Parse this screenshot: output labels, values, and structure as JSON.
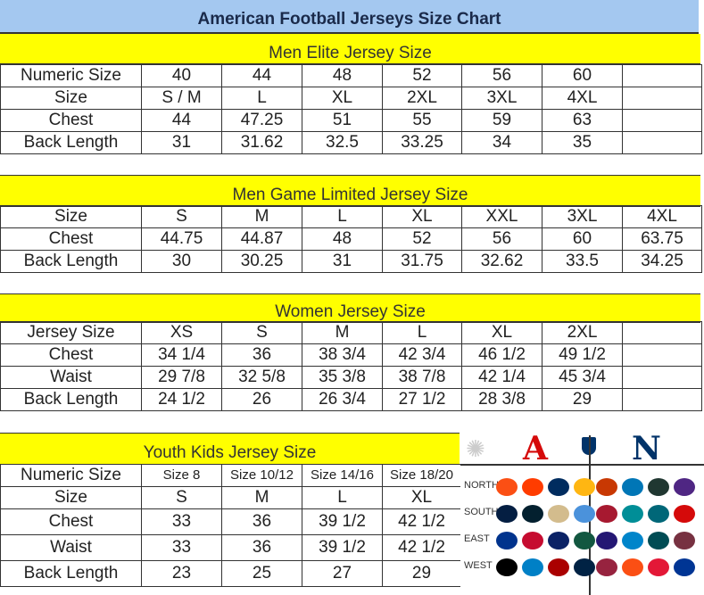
{
  "title": "American Football Jerseys Size Chart",
  "colors": {
    "title_bg": "#a4c8f0",
    "band": "#ffff00"
  },
  "men_elite": {
    "heading": "Men Elite Jersey Size",
    "rows": [
      [
        "Numeric Size",
        "40",
        "44",
        "48",
        "52",
        "56",
        "60",
        ""
      ],
      [
        "Size",
        "S / M",
        "L",
        "XL",
        "2XL",
        "3XL",
        "4XL",
        ""
      ],
      [
        "Chest",
        "44",
        "47.25",
        "51",
        "55",
        "59",
        "63",
        ""
      ],
      [
        "Back Length",
        "31",
        "31.62",
        "32.5",
        "33.25",
        "34",
        "35",
        ""
      ]
    ]
  },
  "men_game": {
    "heading": "Men Game Limited Jersey Size",
    "rows": [
      [
        "Size",
        "S",
        "M",
        "L",
        "XL",
        "XXL",
        "3XL",
        "4XL"
      ],
      [
        "Chest",
        "44.75",
        "44.87",
        "48",
        "52",
        "56",
        "60",
        "63.75"
      ],
      [
        "Back Length",
        "30",
        "30.25",
        "31",
        "31.75",
        "32.62",
        "33.5",
        "34.25"
      ]
    ]
  },
  "women": {
    "heading": "Women Jersey Size",
    "rows": [
      [
        "Jersey Size",
        "XS",
        "S",
        "M",
        "L",
        "XL",
        "2XL",
        ""
      ],
      [
        "Chest",
        "34 1/4",
        "36",
        "38 3/4",
        "42 3/4",
        "46 1/2",
        "49 1/2",
        ""
      ],
      [
        "Waist",
        "29 7/8",
        "32 5/8",
        "35 3/8",
        "38 7/8",
        "42 1/4",
        "45 3/4",
        ""
      ],
      [
        "Back Length",
        "24 1/2",
        "26",
        "26 3/4",
        "27 1/2",
        "28 3/8",
        "29",
        ""
      ]
    ]
  },
  "youth": {
    "heading": "Youth Kids Jersey Size",
    "rows": [
      [
        "Numeric Size",
        "Size 8",
        "Size 10/12",
        "Size 14/16",
        "Size 18/20"
      ],
      [
        "Size",
        "S",
        "M",
        "L",
        "XL"
      ],
      [
        "Chest",
        "33",
        "36",
        "39 1/2",
        "42 1/2"
      ],
      [
        "Waist",
        "33",
        "36",
        "39 1/2",
        "42 1/2"
      ],
      [
        "Back Length",
        "23",
        "25",
        "27",
        "29"
      ]
    ]
  },
  "logos": {
    "afc": "A",
    "nfc": "N",
    "divisions": [
      "NORTH",
      "SOUTH",
      "EAST",
      "WEST"
    ],
    "afc_team_colors": [
      [
        "#fb4f14",
        "#ff3c00",
        "#002c5f",
        "#ffb612"
      ],
      [
        "#041e42",
        "#03202f",
        "#d3bc8d",
        "#4b92db"
      ],
      [
        "#00338d",
        "#c60c30",
        "#0b2265",
        "#125740"
      ],
      [
        "#000000",
        "#0080c6",
        "#aa0000",
        "#002244"
      ]
    ],
    "nfc_team_colors": [
      [
        "#c83803",
        "#0076b6",
        "#203731",
        "#4f2683"
      ],
      [
        "#a71930",
        "#008e97",
        "#006778",
        "#d50a0a"
      ],
      [
        "#241773",
        "#0085ca",
        "#004c54",
        "#773141"
      ],
      [
        "#97233f",
        "#fb4f14",
        "#e31837",
        "#003594"
      ]
    ]
  }
}
